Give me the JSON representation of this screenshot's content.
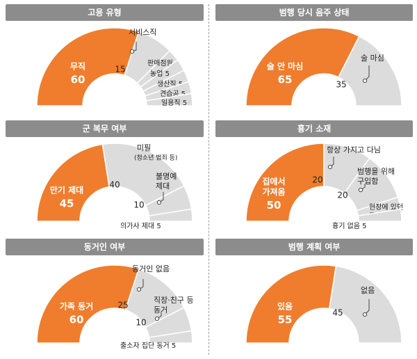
{
  "colors": {
    "accent": "#ef7d2d",
    "slice_fill": "#dcdcdc",
    "slice_stroke": "#ffffff",
    "header_bg": "#8c8c8c",
    "header_text": "#ffffff",
    "label_text": "#222222",
    "callout_line": "#444444"
  },
  "chart_data": [
    {
      "type": "pie",
      "subtype": "half-donut",
      "title": "고용 유형",
      "slices": [
        {
          "label": "무직",
          "value": 60,
          "highlight": true
        },
        {
          "label": "서비스직",
          "value": 15
        },
        {
          "label": "판매점원",
          "value": 5
        },
        {
          "label": "농업",
          "value": 5
        },
        {
          "label": "생산직",
          "value": 5
        },
        {
          "label": "견습공",
          "value": 5
        },
        {
          "label": "일용직",
          "value": 5
        }
      ]
    },
    {
      "type": "pie",
      "subtype": "half-donut",
      "title": "범행 당시 음주 상태",
      "slices": [
        {
          "label": "술 안 마심",
          "value": 65,
          "highlight": true
        },
        {
          "label": "술 마심",
          "value": 35
        }
      ]
    },
    {
      "type": "pie",
      "subtype": "half-donut",
      "title": "군 복무 여부",
      "slices": [
        {
          "label": "만기 제대",
          "value": 45,
          "highlight": true
        },
        {
          "label": "미필",
          "note": "(청소년 범죄 등)",
          "value": 40
        },
        {
          "label": "불명예 제대",
          "value": 10
        },
        {
          "label": "의가사 제대",
          "value": 5
        }
      ]
    },
    {
      "type": "pie",
      "subtype": "half-donut",
      "title": "흉기 소재",
      "slices": [
        {
          "label": "집에서 가져옴",
          "value": 50,
          "highlight": true
        },
        {
          "label": "항상 가지고 다님",
          "value": 20
        },
        {
          "label": "범행을 위해 구입함",
          "value": 20
        },
        {
          "label": "현장에 있던 물건",
          "value": 5
        },
        {
          "label": "흉기 없음",
          "value": 5
        }
      ]
    },
    {
      "type": "pie",
      "subtype": "half-donut",
      "title": "동거인 여부",
      "slices": [
        {
          "label": "가족 동거",
          "value": 60,
          "highlight": true
        },
        {
          "label": "동거인 없음",
          "value": 25
        },
        {
          "label": "직장·친구 등 동거",
          "value": 10
        },
        {
          "label": "출소자 집단 동거",
          "value": 5
        }
      ]
    },
    {
      "type": "pie",
      "subtype": "half-donut",
      "title": "범행 계획 여부",
      "slices": [
        {
          "label": "있음",
          "value": 55,
          "highlight": true
        },
        {
          "label": "없음",
          "value": 45
        }
      ]
    }
  ]
}
